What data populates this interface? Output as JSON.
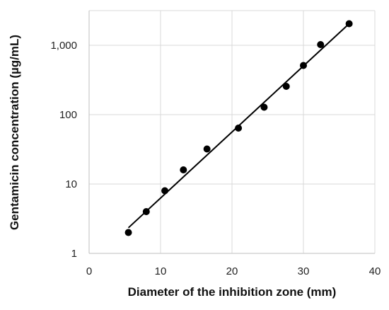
{
  "chart_data": {
    "type": "scatter",
    "title": "",
    "xlabel": "Diameter of the inhibition zone (mm)",
    "ylabel": "Gentamicin concentration (µg/mL)",
    "xlim": [
      0,
      40
    ],
    "ylim": [
      1,
      3162
    ],
    "y_scale": "log",
    "grid": true,
    "legend": "none",
    "x_ticks": [
      0,
      10,
      20,
      30,
      40
    ],
    "x_tick_labels": [
      "0",
      "10",
      "20",
      "30",
      "40"
    ],
    "y_ticks": [
      1,
      10,
      100,
      1000
    ],
    "y_tick_labels": [
      "1",
      "10",
      "100",
      "1,000"
    ],
    "series": [
      {
        "x": [
          5.5,
          8.0,
          10.6,
          13.2,
          16.5,
          20.9,
          24.5,
          27.6,
          30.0,
          32.4,
          36.4
        ],
        "y": [
          2,
          4,
          8,
          16,
          32,
          64,
          128,
          256,
          512,
          1024,
          2048
        ]
      }
    ],
    "trendline": {
      "x": [
        5.5,
        36.4
      ],
      "y": [
        2.34,
        2048
      ]
    },
    "colors": {
      "points": "#000000",
      "trendline": "#000000",
      "grid": "#d9d9d9"
    }
  }
}
